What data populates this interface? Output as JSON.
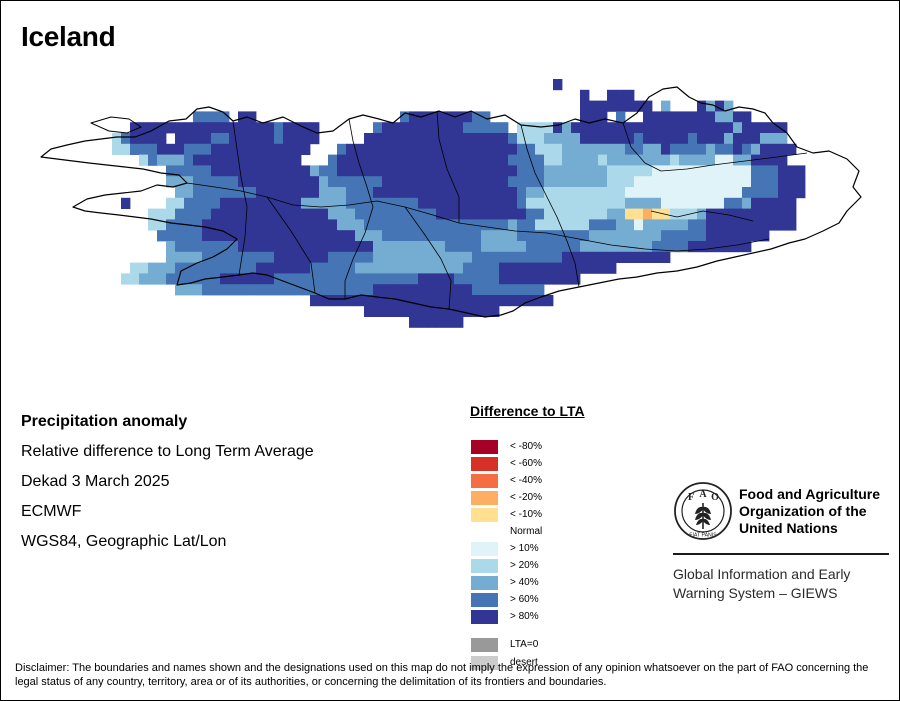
{
  "map": {
    "title": "Iceland",
    "info_lines": [
      "Precipitation anomaly",
      "Relative difference to Long Term Average",
      "Dekad 3 March 2025",
      "ECMWF",
      "WGS84, Geographic Lat/Lon"
    ],
    "legend": {
      "title": "Difference to LTA",
      "items": [
        {
          "label": "< -80%",
          "color": "#a50026"
        },
        {
          "label": "< -60%",
          "color": "#d73027"
        },
        {
          "label": "< -40%",
          "color": "#f46d43"
        },
        {
          "label": "< -20%",
          "color": "#fdae61"
        },
        {
          "label": "< -10%",
          "color": "#fee090"
        },
        {
          "label": "Normal",
          "color": ""
        },
        {
          "label": "> 10%",
          "color": "#e0f3f8"
        },
        {
          "label": "> 20%",
          "color": "#abd9e9"
        },
        {
          "label": "> 40%",
          "color": "#74add1"
        },
        {
          "label": "> 60%",
          "color": "#4575b4"
        },
        {
          "label": "> 80%",
          "color": "#313695"
        },
        {
          "label": "LTA=0",
          "color": "#999999"
        },
        {
          "label": "desert",
          "color": "#cccccc"
        }
      ]
    },
    "organization": {
      "logo_letters": [
        "F",
        "A",
        "O"
      ],
      "logo_motto": "FIAT PANIS",
      "name_lines": [
        "Food and Agriculture",
        "Organization of the",
        "United Nations"
      ],
      "system_lines": [
        "Global Information and Early",
        "Warning System – GIEWS"
      ]
    },
    "disclaimer": "Disclaimer: The boundaries and names shown and the designations used on this map do not imply the expression of any opinion whatsoever on the part of FAO concerning the legal status of any country, territory, area or of its authorities, or concerning the delimitation of its frontiers and boundaries.",
    "grid": {
      "rows": [
        "..........................................................Z.............................",
        ".............................................................Z..ZZZ....................",
        ".............................................................ZZZZZZZZ.Y...ZYZY.........",
        "..................MMMM.ZZ................MZZZZZZZMM..........ZZZ.M..ZZZZZZZZYYZZ.........",
        "...........ZZZZZZZZZZZZZZZZMZZZZ......MZZZZZZZZZMMMMM.XXXXZYZZZZZZZZZZZZZZZZZZYZZZZZ.......",
        ".........XMZZZZ.ZZZZMMZZZZZMZZZZ.....ZZZZZZZZZZZZZZZZMXXXYYYYZZZZZZMZZZZZMZZZYZZZYYY.......",
        ".........XXMMMZZZMMMZZZZZZZZZZZ...MZZZZZZZZZZZZZZZZZZZMMXXXYYYYYYYMMYYZMMMMYMMZMYZZZZ.......",
        "............XMYYYMZZZZZZZZZZZZ...MZZZZZZZZZZZZZZZZZZZMMMMXXYYYYXYYYYYYYXYYYYWWYYZZZZ........",
        "...............MMMMMZZZZZZZZZZZYMMZZZZZZZZZZZZZZZZZZZZMMMYYYYYYYXXXXXWWWWWWWWWWWMMMZZZ......",
        "...............YYYMMMMMZZZZZZZZZYMMMMMMZZZZZZZZZZZZZZMMMMYYYYYYYXXXWWWWWWWWWWWWWMMMZZZ......",
        "................YYMMMMMMMZZZZZZZYYYMMMZZZZZZZZZZZZZZZZMYYXXXXXXXXXWWWWWWWWWWWWWMMMMZZZ......",
        "..........Z....XXMMMMZZZZZZZZZYYYYYMMMMMMMMZZZZZZZZZZZMXXXXXXXXXXXYYYYWWWWWWWMMYZZZZZ.......",
        ".............XXXMMMMZZZZZZZZZZZZZYYYMMMMMMMMMZZZZZZZZZZMMXXXXXXXYYEEDEEXXXYZZZZZZZZZZ.......",
        ".............XXMMMMZZZZZZZZZZZZZZZYYYMMMMMMMMMMMMMMMMYMMXXXXXXMMMYYWYYYYYMMZZZZZZZZZZ.......",
        "..............MMMMMZZZZZZZZZZZZZZZZZYYYMMMMMMMMMMMYYYYMMMMMMMMYYYYYYYYMMMMMZZZZZZZ.........",
        "...............YMMMMMMMZZZZZZZZZZZZZZZYYYYYYYYMMMMYYYYYMMMMMMYYYYYYYYMMMMZZZZZZZ..........",
        "...............YYYYMMMMMMMMZZZZZZMMMMMYYYYYYYYYYYMMMMMMMMMMZZZZZZZZZZZZ................",
        "...........XXYYYMMMMMMMMMZZZZZZMMMMMYYYYYYYYYYYYMMMMZZZZZZZZZZZZZ......................",
        "..........XXYYYMMMMMMZZZZZZMMMMMMMMMMMMMMMMZZZZMMMMMZZZZZZZZZ..........................",
        "................YYYMMMMMMMMMMMMMMMMMMMZZZZZZZZZZZMMMMMMMM..............................",
        "...............................ZZZZZZZZZZZZZZZZZZZZZZZZZZZ............................",
        ".....................................ZZZZZZZZZZZZZZZ...................................",
        "..........................................ZZZZZZ........................................"
      ],
      "palette": {
        "Z": "#313695",
        "M": "#4575b4",
        "Y": "#74add1",
        "X": "#abd9e9",
        "W": "#e0f3f8",
        "D": "#fdae61",
        "E": "#fee090"
      }
    }
  }
}
